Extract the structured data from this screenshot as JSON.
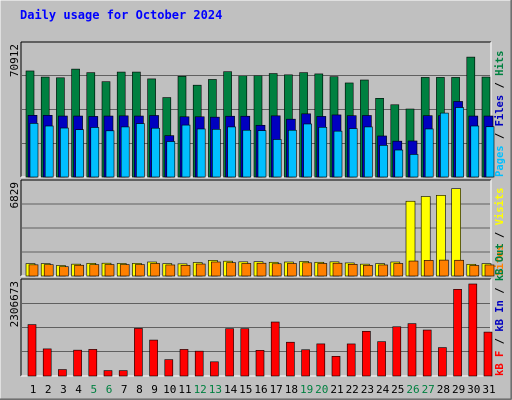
{
  "chart_data": {
    "type": "bar",
    "title": "Daily usage for October 2024",
    "categories": [
      "1",
      "2",
      "3",
      "4",
      "5",
      "6",
      "7",
      "8",
      "9",
      "10",
      "11",
      "12",
      "13",
      "14",
      "15",
      "16",
      "17",
      "18",
      "19",
      "20",
      "21",
      "22",
      "23",
      "24",
      "25",
      "26",
      "27",
      "28",
      "29",
      "30",
      "31"
    ],
    "weekend_days": [
      "5",
      "6",
      "12",
      "13",
      "19",
      "20",
      "26",
      "27"
    ],
    "panels": [
      {
        "name": "hits-files-pages",
        "ymax_label": "70912",
        "ylim": [
          0,
          70912
        ],
        "legend": [
          {
            "label": "Pages",
            "color": "#00bfff"
          },
          {
            "label": "Files",
            "color": "#0000c0"
          },
          {
            "label": "Hits",
            "color": "#008040"
          }
        ],
        "series": [
          {
            "name": "Hits",
            "color": "#008040",
            "values": [
              57400,
              54100,
              53700,
              58400,
              56500,
              51600,
              56800,
              56800,
              53100,
              43000,
              54500,
              49700,
              52800,
              57000,
              54800,
              54900,
              56000,
              55300,
              56500,
              55800,
              54300,
              50900,
              52500,
              42600,
              39100,
              36800,
              53900,
              53900,
              53900,
              64900,
              54100
            ]
          },
          {
            "name": "Files",
            "color": "#0000c0",
            "values": [
              33400,
              33400,
              33000,
              33000,
              32800,
              33000,
              33100,
              33000,
              33300,
              22400,
              32600,
              32600,
              32400,
              32900,
              32900,
              28000,
              33100,
              31300,
              34200,
              32800,
              33600,
              33200,
              33300,
              22200,
              19400,
              19500,
              33200,
              33200,
              40900,
              33000,
              33000
            ]
          },
          {
            "name": "Pages",
            "color": "#00bfff",
            "values": [
              29000,
              27600,
              26500,
              25600,
              26800,
              25000,
              27100,
              28900,
              26400,
              19200,
              28100,
              26000,
              25800,
              27100,
              25300,
              25100,
              20300,
              25300,
              28700,
              26900,
              24800,
              26200,
              27100,
              17100,
              14600,
              12200,
              26000,
              34600,
              37600,
              27600,
              27200
            ]
          }
        ]
      },
      {
        "name": "visits-sites",
        "ymax_label": "6829",
        "ylim": [
          0,
          6829
        ],
        "legend": [
          {
            "label": "Sites",
            "color": "#ff8000"
          },
          {
            "label": "Visits",
            "color": "#ffff00"
          }
        ],
        "series": [
          {
            "name": "Visits",
            "color": "#ffff00",
            "values": [
              920,
              920,
              780,
              880,
              940,
              950,
              930,
              940,
              1040,
              920,
              900,
              1000,
              1160,
              1100,
              1050,
              1060,
              1020,
              1040,
              1080,
              1020,
              1050,
              970,
              880,
              920,
              1040,
              5550,
              5900,
              5990,
              6480,
              870,
              920
            ]
          },
          {
            "name": "Sites",
            "color": "#ff8000",
            "values": [
              830,
              840,
              690,
              800,
              840,
              850,
              850,
              850,
              930,
              820,
              790,
              890,
              1040,
              990,
              930,
              950,
              910,
              930,
              980,
              930,
              950,
              870,
              790,
              820,
              930,
              1110,
              1160,
              1180,
              1170,
              780,
              820
            ]
          }
        ]
      },
      {
        "name": "kbytes",
        "ymax_label": "2306673",
        "ylim": [
          0,
          2306673
        ],
        "legend": [
          {
            "label": "kB F",
            "color": "#ff0000"
          },
          {
            "label": "kB In",
            "color": "#0000c0"
          },
          {
            "label": "kB Out",
            "color": "#008040"
          }
        ],
        "series": [
          {
            "name": "kB F",
            "color": "#ff0000",
            "values": [
              1275000,
              672000,
              160000,
              641000,
              660000,
              134000,
              134000,
              1180000,
              891000,
              406000,
              659000,
              616000,
              352000,
              1174000,
              1174000,
              636000,
              1339000,
              838000,
              651000,
              796000,
              488000,
              795000,
              1109000,
              852000,
              1221000,
              1299000,
              1140000,
              705000,
              2150000,
              2282000,
              1089000
            ]
          }
        ]
      }
    ]
  }
}
